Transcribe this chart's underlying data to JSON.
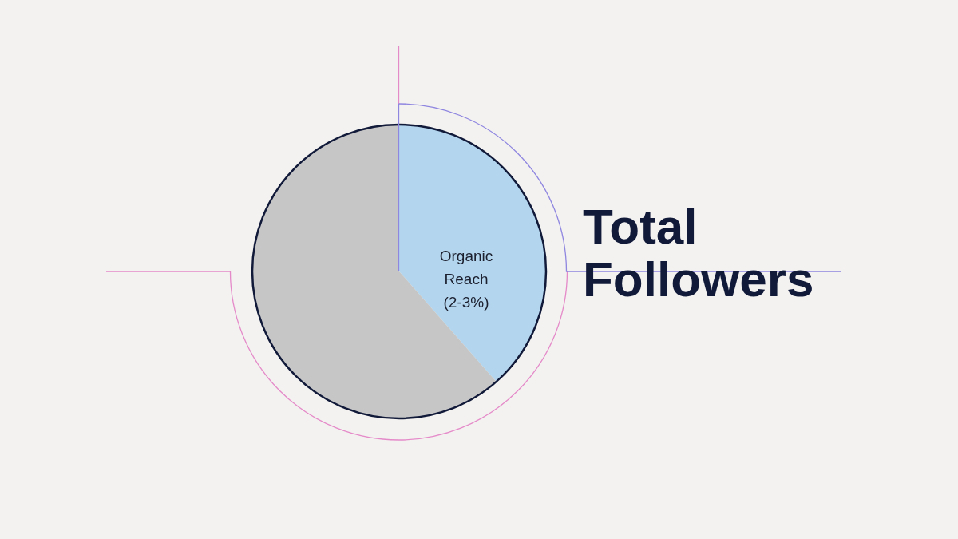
{
  "chart_data": {
    "type": "pie",
    "title": "Total Followers",
    "categories": [
      "Organic Reach (2-3%)",
      null
    ],
    "values": [
      38.5,
      61.5
    ],
    "colors": [
      "#b3d6ee",
      "#c6c6c6"
    ]
  }
}
